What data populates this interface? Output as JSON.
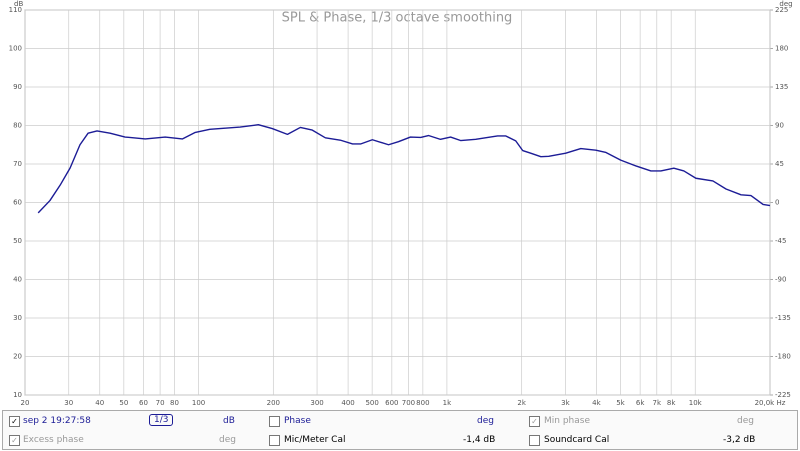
{
  "chart_data": {
    "type": "line",
    "title": "SPL & Phase, 1/3 octave smoothing",
    "ylabel": "dB",
    "y2label": "deg",
    "xscale": "log",
    "grid": true,
    "x": [
      22.6,
      25.2,
      27.7,
      30.4,
      33.3,
      35.9,
      39,
      44,
      50.6,
      61,
      73.4,
      86,
      97,
      111,
      147,
      174,
      198,
      228,
      257,
      287,
      324,
      372,
      417,
      449,
      501,
      582,
      638,
      713,
      784,
      843,
      942,
      1035,
      1135,
      1306,
      1528,
      1600,
      1723,
      1893,
      2018,
      2175,
      2390,
      2570,
      3010,
      3460,
      3980,
      4370,
      5010,
      5770,
      6630,
      7270,
      8200,
      9000,
      10060,
      11780,
      13300,
      15290,
      16760,
      18750,
      20000
    ],
    "series": [
      {
        "name": "SPL",
        "color": "#1c1c96",
        "values": [
          57.3,
          60.5,
          64.5,
          69,
          75,
          78,
          78.6,
          78,
          77,
          76.5,
          77,
          76.5,
          78.2,
          79,
          79.6,
          80.2,
          79.2,
          77.7,
          79.5,
          78.8,
          76.8,
          76.2,
          75.2,
          75.2,
          76.3,
          75,
          75.8,
          77,
          76.9,
          77.4,
          76.4,
          77,
          76.1,
          76.4,
          77.1,
          77.3,
          77.3,
          76,
          73.5,
          72.8,
          71.9,
          72,
          72.8,
          74,
          73.6,
          73,
          71,
          69.5,
          68.2,
          68.2,
          68.9,
          68.2,
          66.3,
          65.6,
          63.5,
          62,
          61.8,
          59.5,
          59.2
        ]
      }
    ],
    "xlim": [
      20,
      20000
    ],
    "xticks": [
      20,
      30,
      40,
      50,
      60,
      70,
      80,
      100,
      200,
      300,
      400,
      500,
      600,
      700,
      800,
      {
        "value": 1000,
        "label": "1k"
      },
      {
        "value": 2000,
        "label": "2k"
      },
      {
        "value": 3000,
        "label": "3k"
      },
      {
        "value": 4000,
        "label": "4k"
      },
      {
        "value": 5000,
        "label": "5k"
      },
      {
        "value": 6000,
        "label": "6k"
      },
      {
        "value": 7000,
        "label": "7k"
      },
      {
        "value": 8000,
        "label": "8k"
      },
      {
        "value": 10000,
        "label": "10k"
      },
      {
        "value": 20000,
        "label": "20,0k Hz"
      }
    ],
    "ylim": [
      10,
      110
    ],
    "yticks": [
      10,
      20,
      30,
      40,
      50,
      60,
      70,
      80,
      90,
      100,
      110
    ],
    "y2lim": [
      -225,
      225
    ],
    "y2ticks": [
      -225,
      -180,
      -135,
      -90,
      -45,
      0,
      45,
      90,
      135,
      180,
      225
    ]
  },
  "controls": {
    "measurement": "sep 2 19:27:58",
    "smoothing": "1/3",
    "spl_unit": "dB",
    "phase": "Phase",
    "phase_unit": "deg",
    "min_phase": "Min phase",
    "min_phase_unit": "deg",
    "excess_phase": "Excess phase",
    "excess_phase_unit": "deg",
    "mic_cal": "Mic/Meter Cal",
    "mic_cal_value": "-1,4 dB",
    "soundcard_cal": "Soundcard Cal",
    "soundcard_cal_value": "-3,2 dB"
  }
}
